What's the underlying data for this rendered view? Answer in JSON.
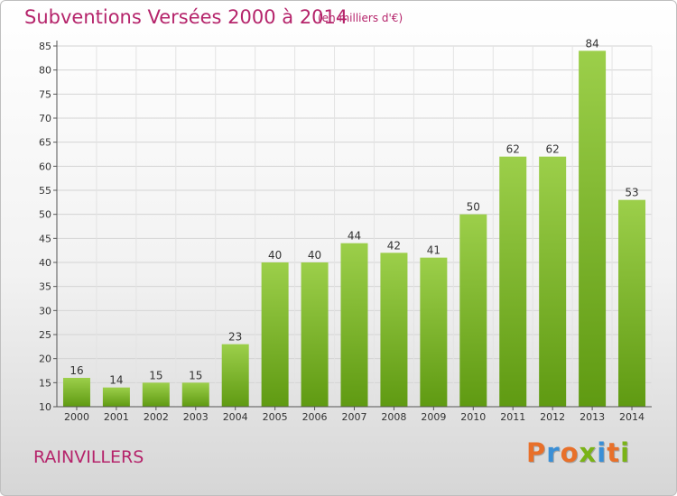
{
  "title": "Subventions Versées 2000 à 2014",
  "subtitle": "(en milliers d'€)",
  "commune": "RAINVILLERS",
  "logo": "Proxiti",
  "logo_colors": [
    "#e8702a",
    "#3a8fd6",
    "#e8702a",
    "#7ab317",
    "#3a8fd6",
    "#e8702a",
    "#7ab317"
  ],
  "colors": {
    "title": "#b5246b",
    "bar_top": "#9ccf4a",
    "bar_bottom": "#5f9a12"
  },
  "chart_data": {
    "type": "bar",
    "categories": [
      "2000",
      "2001",
      "2002",
      "2003",
      "2004",
      "2005",
      "2006",
      "2007",
      "2008",
      "2009",
      "2010",
      "2011",
      "2012",
      "2013",
      "2014"
    ],
    "values": [
      16,
      14,
      15,
      15,
      23,
      40,
      40,
      44,
      42,
      41,
      50,
      62,
      62,
      84,
      53
    ],
    "ylim": [
      10,
      85
    ],
    "yticks": [
      10,
      15,
      20,
      25,
      30,
      35,
      40,
      45,
      50,
      55,
      60,
      65,
      70,
      75,
      80,
      85
    ],
    "grid": true,
    "data_labels": true
  }
}
